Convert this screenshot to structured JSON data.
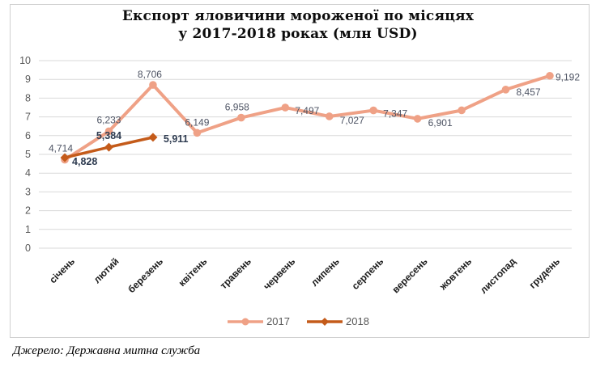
{
  "chart": {
    "title_line1": "Експорт яловичини мороженої по місяцях",
    "title_line2": "у 2017-2018 роках (млн USD)",
    "source": "Джерело: Державна митна служба"
  },
  "chart_data": {
    "type": "line",
    "title": "Експорт яловичини мороженої по місяцях у 2017-2018 роках (млн USD)",
    "categories": [
      "січень",
      "лютий",
      "березень",
      "квітень",
      "травень",
      "червень",
      "липень",
      "серпень",
      "вересень",
      "жовтень",
      "листопад",
      "грудень"
    ],
    "series": [
      {
        "name": "2017",
        "color": "#efa186",
        "marker": "circle",
        "values": [
          4.714,
          6.233,
          8.706,
          6.149,
          6.958,
          7.497,
          7.027,
          7.347,
          6.901,
          7.35,
          8.457,
          9.192
        ],
        "labels": [
          "4,714",
          "6,233",
          "8,706",
          "6,149",
          "6,958",
          "7,497",
          "7,027",
          "7,347",
          "6,901",
          "",
          "8,457",
          "9,192"
        ]
      },
      {
        "name": "2018",
        "color": "#c45b1a",
        "marker": "diamond",
        "values": [
          4.828,
          5.384,
          5.911
        ],
        "labels": [
          "4,828",
          "5,384",
          "5,911"
        ]
      }
    ],
    "ylim": [
      0,
      10
    ],
    "ytick_step": 1,
    "grid": "horizontal",
    "gridline_color": "#d9d9d9",
    "legend_position": "bottom",
    "label_color_2017": "#4d5363",
    "label_color_2018": "#2e3b50"
  }
}
